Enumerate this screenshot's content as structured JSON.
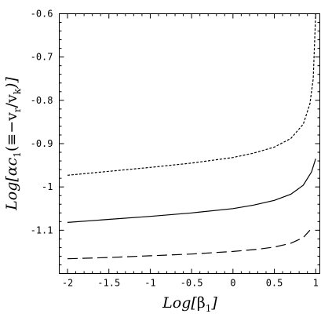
{
  "chart_data": {
    "type": "line",
    "xlim": [
      -2.1,
      1.05
    ],
    "ylim": [
      -1.2,
      -0.6
    ],
    "xticks": [
      -2,
      -1.5,
      -1,
      -0.5,
      0,
      0.5,
      1
    ],
    "xtick_labels": [
      "-2",
      "-1.5",
      "-1",
      "-0.5",
      "0",
      "0.5",
      "1"
    ],
    "yticks": [
      -1.1,
      -1,
      -0.9,
      -0.8,
      -0.7,
      -0.6
    ],
    "ytick_labels": [
      "-1.1",
      "-1",
      "-0.9",
      "-0.8",
      "-0.7",
      "-0.6"
    ],
    "xlabel": {
      "prefix": "Log[",
      "main": "β",
      "sub": "1",
      "suffix": "]"
    },
    "ylabel": {
      "prefix": "Log[αc",
      "sub1": "1",
      "mid": "(≡−v",
      "sub2": "r",
      "mid2": "/v",
      "sub3": "k",
      "suffix": ")]"
    },
    "grid": false,
    "series": [
      {
        "style": "short-dash",
        "x": [
          -2.0,
          -1.5,
          -1.0,
          -0.5,
          0.0,
          0.25,
          0.5,
          0.7,
          0.85,
          0.93,
          0.97,
          1.0
        ],
        "y": [
          -0.973,
          -0.964,
          -0.955,
          -0.945,
          -0.932,
          -0.922,
          -0.908,
          -0.888,
          -0.855,
          -0.808,
          -0.75,
          -0.6
        ]
      },
      {
        "style": "solid",
        "x": [
          -2.0,
          -1.5,
          -1.0,
          -0.5,
          0.0,
          0.25,
          0.5,
          0.7,
          0.85,
          0.95,
          1.0
        ],
        "y": [
          -1.082,
          -1.075,
          -1.068,
          -1.06,
          -1.05,
          -1.042,
          -1.031,
          -1.017,
          -0.996,
          -0.965,
          -0.935
        ]
      },
      {
        "style": "long-dash",
        "x": [
          -2.0,
          -1.5,
          -1.0,
          -0.5,
          0.0,
          0.3,
          0.5,
          0.7,
          0.85,
          0.93
        ],
        "y": [
          -1.166,
          -1.163,
          -1.159,
          -1.155,
          -1.149,
          -1.144,
          -1.139,
          -1.13,
          -1.117,
          -1.1
        ]
      }
    ]
  }
}
